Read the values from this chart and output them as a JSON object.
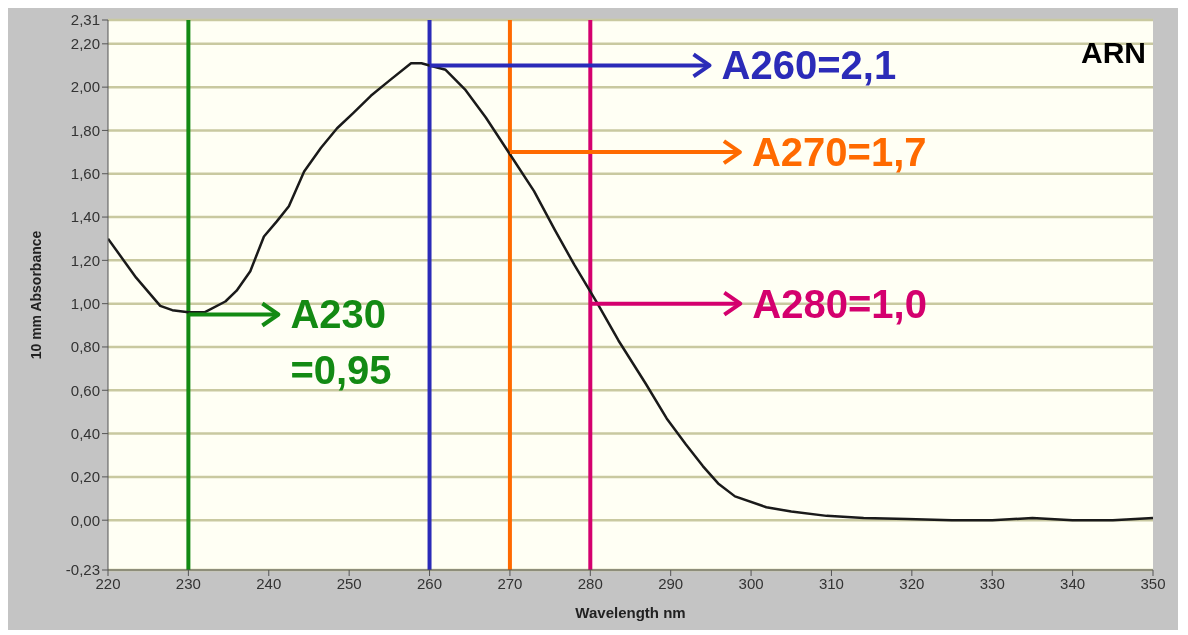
{
  "chart_data": {
    "type": "line",
    "title": "ARN",
    "xlabel": "Wavelength nm",
    "ylabel": "10 mm Absorbance",
    "x": [
      220,
      223.5,
      226.5,
      228,
      230,
      232,
      234.6,
      236,
      237.7,
      239.4,
      241,
      242.5,
      244.4,
      246.5,
      248.5,
      250.5,
      252.7,
      255,
      257.7,
      259,
      260,
      262,
      264.4,
      267,
      270,
      273,
      275.6,
      278,
      280.9,
      283.5,
      286.9,
      289.5,
      291.9,
      294,
      295.9,
      298,
      301.9,
      305,
      309.4,
      314,
      319.4,
      325,
      330,
      335,
      340,
      345,
      350
    ],
    "series": [
      {
        "color": "#1a1a1a",
        "values": [
          1.3,
          1.12,
          0.99,
          0.97,
          0.96,
          0.96,
          1.01,
          1.06,
          1.15,
          1.31,
          1.38,
          1.45,
          1.61,
          1.72,
          1.81,
          1.88,
          1.96,
          2.03,
          2.11,
          2.11,
          2.1,
          2.08,
          1.99,
          1.86,
          1.69,
          1.52,
          1.34,
          1.18,
          1.0,
          0.83,
          0.63,
          0.47,
          0.35,
          0.25,
          0.17,
          0.11,
          0.06,
          0.04,
          0.02,
          0.01,
          0.005,
          0.0,
          0.0,
          0.01,
          0.0,
          0.0,
          0.01
        ]
      }
    ],
    "xlim": [
      220,
      350
    ],
    "xticks": [
      220,
      230,
      240,
      250,
      260,
      270,
      280,
      290,
      300,
      310,
      320,
      330,
      340,
      350
    ],
    "ylim": [
      -0.23,
      2.31
    ],
    "yticks": [
      {
        "value": -0.23,
        "label": "-0,23"
      },
      {
        "value": 0,
        "label": "0,00"
      },
      {
        "value": 0.2,
        "label": "0,20"
      },
      {
        "value": 0.4,
        "label": "0,40"
      },
      {
        "value": 0.6,
        "label": "0,60"
      },
      {
        "value": 0.8,
        "label": "0,80"
      },
      {
        "value": 1.0,
        "label": "1,00"
      },
      {
        "value": 1.2,
        "label": "1,20"
      },
      {
        "value": 1.4,
        "label": "1,40"
      },
      {
        "value": 1.6,
        "label": "1,60"
      },
      {
        "value": 1.8,
        "label": "1,80"
      },
      {
        "value": 2.0,
        "label": "2,00"
      },
      {
        "value": 2.2,
        "label": "2,20"
      },
      {
        "value": 2.31,
        "label": "2,31"
      }
    ],
    "grid": "y",
    "ref_lines": [
      {
        "axis": "x",
        "value": 230,
        "color": "#138a13"
      },
      {
        "axis": "x",
        "value": 260,
        "color": "#2b2bb8"
      },
      {
        "axis": "x",
        "value": 270,
        "color": "#ff6a00"
      },
      {
        "axis": "x",
        "value": 280,
        "color": "#d4006e"
      }
    ],
    "annotations": [
      {
        "text": "A230 =0,95",
        "x": 230,
        "y": 0.95
      },
      {
        "text": "A260=2,1",
        "x": 260,
        "y": 2.1
      },
      {
        "text": "A270=1,7",
        "x": 270,
        "y": 1.7
      },
      {
        "text": "A280=1,0",
        "x": 280,
        "y": 1.0
      }
    ]
  }
}
